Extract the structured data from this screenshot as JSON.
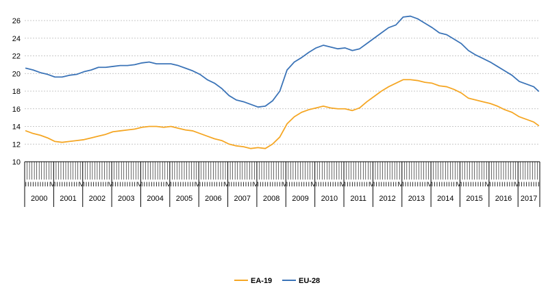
{
  "chart_data": {
    "type": "line",
    "title": "",
    "xlabel": "",
    "ylabel": "",
    "ylim": [
      10,
      26
    ],
    "yticks": [
      10,
      12,
      14,
      16,
      18,
      20,
      22,
      24,
      26
    ],
    "grid": "horizontal-dashed",
    "legend_position": "bottom-center",
    "x_start": "2000-01",
    "x_end": "2017-09",
    "month_label_pattern": [
      "I",
      "I",
      "I",
      "I",
      "I",
      "I",
      "I",
      "I",
      "I",
      "I",
      "I",
      "V"
    ],
    "years": [
      "2000",
      "2001",
      "2002",
      "2003",
      "2004",
      "2005",
      "2006",
      "2007",
      "2008",
      "2009",
      "2010",
      "2011",
      "2012",
      "2013",
      "2014",
      "2015",
      "2016",
      "2017"
    ],
    "series": [
      {
        "name": "EA-19",
        "color": "#f5a623",
        "points": [
          [
            "2000-01",
            13.5
          ],
          [
            "2000-04",
            13.2
          ],
          [
            "2000-07",
            13.0
          ],
          [
            "2000-10",
            12.7
          ],
          [
            "2001-01",
            12.3
          ],
          [
            "2001-04",
            12.2
          ],
          [
            "2001-07",
            12.3
          ],
          [
            "2001-10",
            12.4
          ],
          [
            "2002-01",
            12.5
          ],
          [
            "2002-04",
            12.7
          ],
          [
            "2002-07",
            12.9
          ],
          [
            "2002-10",
            13.1
          ],
          [
            "2003-01",
            13.4
          ],
          [
            "2003-04",
            13.5
          ],
          [
            "2003-07",
            13.6
          ],
          [
            "2003-10",
            13.7
          ],
          [
            "2004-01",
            13.9
          ],
          [
            "2004-04",
            14.0
          ],
          [
            "2004-07",
            14.0
          ],
          [
            "2004-10",
            13.9
          ],
          [
            "2005-01",
            14.0
          ],
          [
            "2005-04",
            13.8
          ],
          [
            "2005-07",
            13.6
          ],
          [
            "2005-10",
            13.5
          ],
          [
            "2006-01",
            13.2
          ],
          [
            "2006-04",
            12.9
          ],
          [
            "2006-07",
            12.6
          ],
          [
            "2006-10",
            12.4
          ],
          [
            "2007-01",
            12.0
          ],
          [
            "2007-04",
            11.8
          ],
          [
            "2007-07",
            11.7
          ],
          [
            "2007-10",
            11.5
          ],
          [
            "2008-01",
            11.6
          ],
          [
            "2008-04",
            11.5
          ],
          [
            "2008-07",
            12.0
          ],
          [
            "2008-10",
            12.8
          ],
          [
            "2009-01",
            14.3
          ],
          [
            "2009-04",
            15.1
          ],
          [
            "2009-07",
            15.6
          ],
          [
            "2009-10",
            15.9
          ],
          [
            "2010-01",
            16.1
          ],
          [
            "2010-04",
            16.3
          ],
          [
            "2010-07",
            16.1
          ],
          [
            "2010-10",
            16.0
          ],
          [
            "2011-01",
            16.0
          ],
          [
            "2011-04",
            15.8
          ],
          [
            "2011-07",
            16.1
          ],
          [
            "2011-10",
            16.8
          ],
          [
            "2012-01",
            17.4
          ],
          [
            "2012-04",
            18.0
          ],
          [
            "2012-07",
            18.5
          ],
          [
            "2012-10",
            18.9
          ],
          [
            "2013-01",
            19.3
          ],
          [
            "2013-04",
            19.3
          ],
          [
            "2013-07",
            19.2
          ],
          [
            "2013-10",
            19.0
          ],
          [
            "2014-01",
            18.9
          ],
          [
            "2014-04",
            18.6
          ],
          [
            "2014-07",
            18.5
          ],
          [
            "2014-10",
            18.2
          ],
          [
            "2015-01",
            17.8
          ],
          [
            "2015-04",
            17.2
          ],
          [
            "2015-07",
            17.0
          ],
          [
            "2015-10",
            16.8
          ],
          [
            "2016-01",
            16.6
          ],
          [
            "2016-04",
            16.3
          ],
          [
            "2016-07",
            15.9
          ],
          [
            "2016-10",
            15.6
          ],
          [
            "2017-01",
            15.1
          ],
          [
            "2017-04",
            14.8
          ],
          [
            "2017-07",
            14.5
          ],
          [
            "2017-09",
            14.1
          ]
        ]
      },
      {
        "name": "EU-28",
        "color": "#3a73b7",
        "points": [
          [
            "2000-01",
            20.6
          ],
          [
            "2000-04",
            20.4
          ],
          [
            "2000-07",
            20.1
          ],
          [
            "2000-10",
            19.9
          ],
          [
            "2001-01",
            19.6
          ],
          [
            "2001-04",
            19.6
          ],
          [
            "2001-07",
            19.8
          ],
          [
            "2001-10",
            19.9
          ],
          [
            "2002-01",
            20.2
          ],
          [
            "2002-04",
            20.4
          ],
          [
            "2002-07",
            20.7
          ],
          [
            "2002-10",
            20.7
          ],
          [
            "2003-01",
            20.8
          ],
          [
            "2003-04",
            20.9
          ],
          [
            "2003-07",
            20.9
          ],
          [
            "2003-10",
            21.0
          ],
          [
            "2004-01",
            21.2
          ],
          [
            "2004-04",
            21.3
          ],
          [
            "2004-07",
            21.1
          ],
          [
            "2004-10",
            21.1
          ],
          [
            "2005-01",
            21.1
          ],
          [
            "2005-04",
            20.9
          ],
          [
            "2005-07",
            20.6
          ],
          [
            "2005-10",
            20.3
          ],
          [
            "2006-01",
            19.9
          ],
          [
            "2006-04",
            19.3
          ],
          [
            "2006-07",
            18.9
          ],
          [
            "2006-10",
            18.3
          ],
          [
            "2007-01",
            17.5
          ],
          [
            "2007-04",
            17.0
          ],
          [
            "2007-07",
            16.8
          ],
          [
            "2007-10",
            16.5
          ],
          [
            "2008-01",
            16.2
          ],
          [
            "2008-04",
            16.3
          ],
          [
            "2008-07",
            16.9
          ],
          [
            "2008-10",
            18.0
          ],
          [
            "2009-01",
            20.4
          ],
          [
            "2009-04",
            21.3
          ],
          [
            "2009-07",
            21.8
          ],
          [
            "2009-10",
            22.4
          ],
          [
            "2010-01",
            22.9
          ],
          [
            "2010-04",
            23.2
          ],
          [
            "2010-07",
            23.0
          ],
          [
            "2010-10",
            22.8
          ],
          [
            "2011-01",
            22.9
          ],
          [
            "2011-04",
            22.6
          ],
          [
            "2011-07",
            22.8
          ],
          [
            "2011-10",
            23.4
          ],
          [
            "2012-01",
            24.0
          ],
          [
            "2012-04",
            24.6
          ],
          [
            "2012-07",
            25.2
          ],
          [
            "2012-10",
            25.5
          ],
          [
            "2013-01",
            26.4
          ],
          [
            "2013-04",
            26.5
          ],
          [
            "2013-07",
            26.2
          ],
          [
            "2013-10",
            25.7
          ],
          [
            "2014-01",
            25.2
          ],
          [
            "2014-04",
            24.6
          ],
          [
            "2014-07",
            24.4
          ],
          [
            "2014-10",
            23.9
          ],
          [
            "2015-01",
            23.4
          ],
          [
            "2015-04",
            22.6
          ],
          [
            "2015-07",
            22.1
          ],
          [
            "2015-10",
            21.7
          ],
          [
            "2016-01",
            21.3
          ],
          [
            "2016-04",
            20.8
          ],
          [
            "2016-07",
            20.3
          ],
          [
            "2016-10",
            19.8
          ],
          [
            "2017-01",
            19.1
          ],
          [
            "2017-04",
            18.8
          ],
          [
            "2017-07",
            18.5
          ],
          [
            "2017-09",
            18.0
          ]
        ]
      }
    ]
  }
}
